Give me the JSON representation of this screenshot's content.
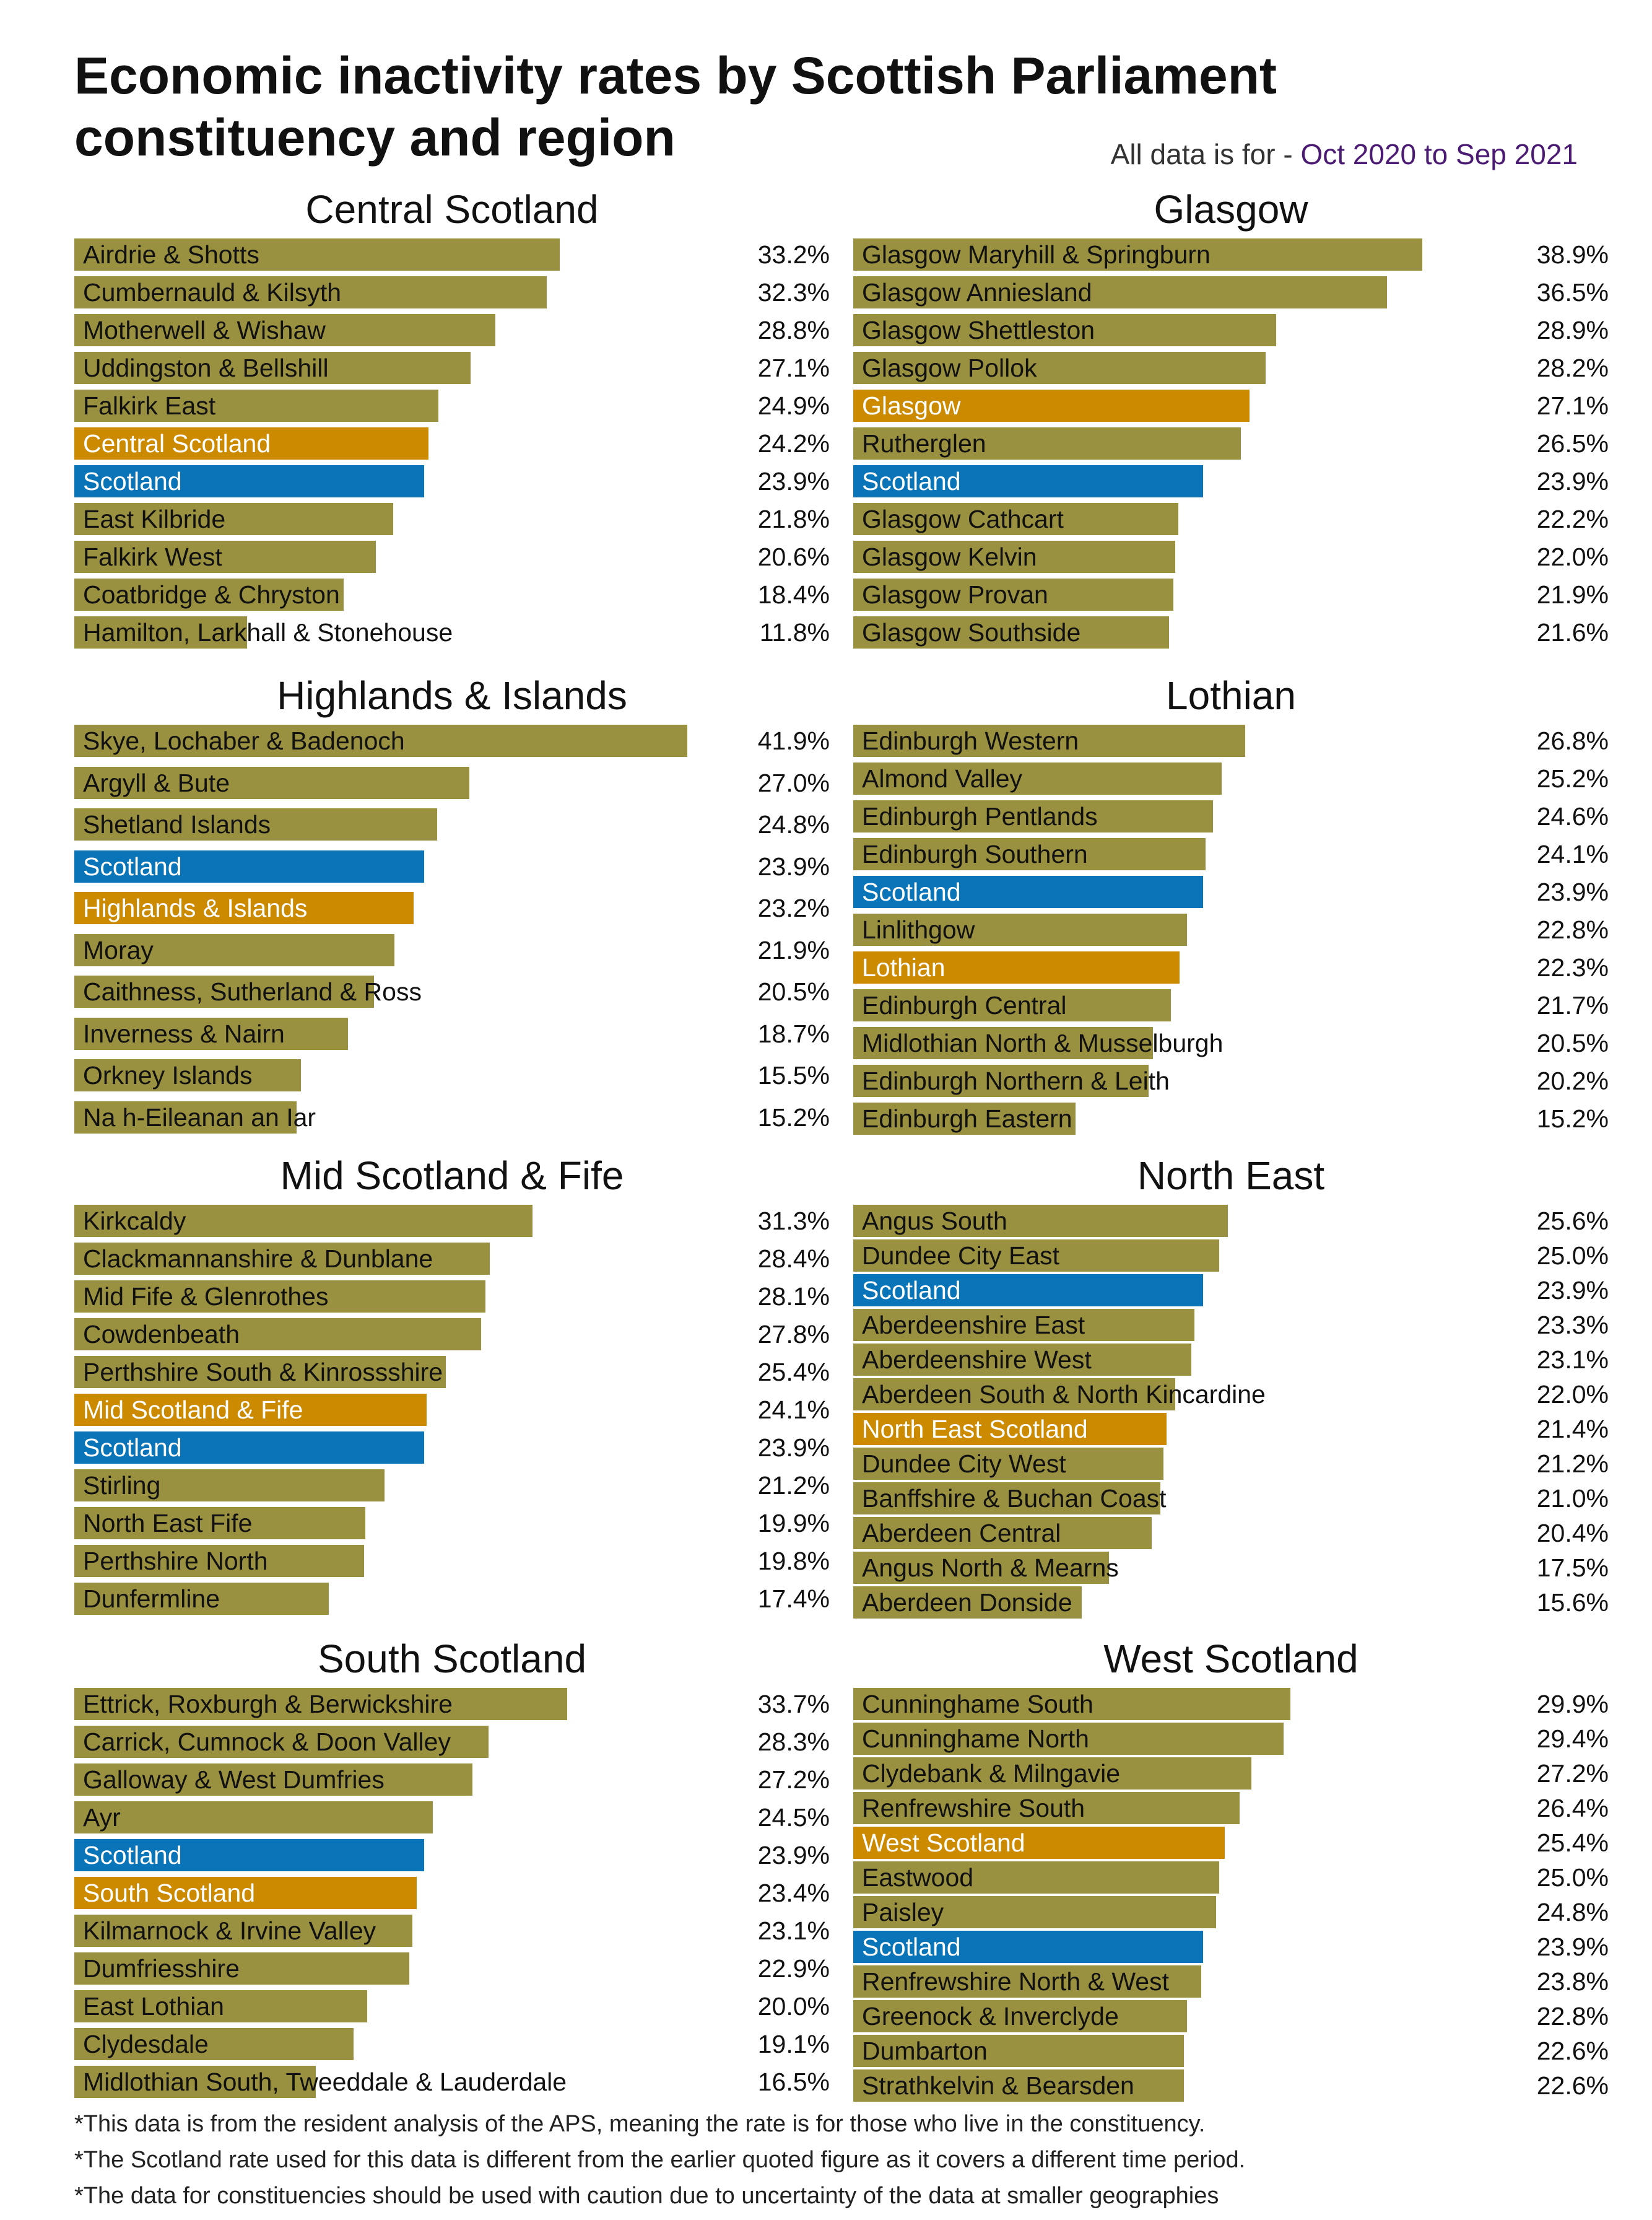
{
  "title": "Economic inactivity rates by Scottish Parliament constituency and region",
  "period_prefix": "All data is for - ",
  "period_range": "Oct 2020 to Sep 2021",
  "colors": {
    "constituency": "#9a9140",
    "region": "#cc8a00",
    "scotland": "#0a74b8",
    "period": "#4b1a73"
  },
  "notes": [
    "*This data is from the resident analysis of the APS, meaning the rate is for those who live in the constituency.",
    "*The Scotland rate used for this data is different from the earlier quoted figure as it covers a different time period.",
    "*The data for constituencies should be used with caution due to uncertainty of the data at smaller geographies"
  ],
  "chart_data": [
    {
      "type": "bar",
      "orientation": "horizontal",
      "title": "Central Scotland",
      "unit": "%",
      "categories": [
        "Airdrie & Shotts",
        "Cumbernauld & Kilsyth",
        "Motherwell & Wishaw",
        "Uddingston & Bellshill",
        "Falkirk East",
        "Central Scotland",
        "Scotland",
        "East Kilbride",
        "Falkirk West",
        "Coatbridge & Chryston",
        "Hamilton, Larkhall & Stonehouse"
      ],
      "values": [
        33.2,
        32.3,
        28.8,
        27.1,
        24.9,
        24.2,
        23.9,
        21.8,
        20.6,
        18.4,
        11.8
      ],
      "value_labels": [
        "33.2%",
        "32.3%",
        "28.8%",
        "27.1%",
        "24.9%",
        "24.2%",
        "23.9%",
        "21.8%",
        "20.6%",
        "18.4%",
        "11.8%"
      ],
      "kinds": [
        "c",
        "c",
        "c",
        "c",
        "c",
        "r",
        "s",
        "c",
        "c",
        "c",
        "c"
      ]
    },
    {
      "type": "bar",
      "orientation": "horizontal",
      "title": "Glasgow",
      "unit": "%",
      "categories": [
        "Glasgow Maryhill & Springburn",
        "Glasgow Anniesland",
        "Glasgow Shettleston",
        "Glasgow Pollok",
        "Glasgow",
        "Rutherglen",
        "Scotland",
        "Glasgow Cathcart",
        "Glasgow Kelvin",
        "Glasgow Provan",
        "Glasgow Southside"
      ],
      "values": [
        38.9,
        36.5,
        28.9,
        28.2,
        27.1,
        26.5,
        23.9,
        22.2,
        22.0,
        21.9,
        21.6
      ],
      "value_labels": [
        "38.9%",
        "36.5%",
        "28.9%",
        "28.2%",
        "27.1%",
        "26.5%",
        "23.9%",
        "22.2%",
        "22.0%",
        "21.9%",
        "21.6%"
      ],
      "kinds": [
        "c",
        "c",
        "c",
        "c",
        "r",
        "c",
        "s",
        "c",
        "c",
        "c",
        "c"
      ]
    },
    {
      "type": "bar",
      "orientation": "horizontal",
      "title": "Highlands & Islands",
      "unit": "%",
      "categories": [
        "Skye, Lochaber & Badenoch",
        "Argyll & Bute",
        "Shetland Islands",
        "Scotland",
        "Highlands & Islands",
        "Moray",
        "Caithness, Sutherland & Ross",
        "Inverness & Nairn",
        "Orkney Islands",
        "Na h-Eileanan an Iar"
      ],
      "values": [
        41.9,
        27.0,
        24.8,
        23.9,
        23.2,
        21.9,
        20.5,
        18.7,
        15.5,
        15.2
      ],
      "value_labels": [
        "41.9%",
        "27.0%",
        "24.8%",
        "23.9%",
        "23.2%",
        "21.9%",
        "20.5%",
        "18.7%",
        "15.5%",
        "15.2%"
      ],
      "kinds": [
        "c",
        "c",
        "c",
        "s",
        "r",
        "c",
        "c",
        "c",
        "c",
        "c"
      ]
    },
    {
      "type": "bar",
      "orientation": "horizontal",
      "title": "Lothian",
      "unit": "%",
      "categories": [
        "Edinburgh Western",
        "Almond Valley",
        "Edinburgh Pentlands",
        "Edinburgh Southern",
        "Scotland",
        "Linlithgow",
        "Lothian",
        "Edinburgh Central",
        "Midlothian North & Musselburgh",
        "Edinburgh Northern & Leith",
        "Edinburgh Eastern"
      ],
      "values": [
        26.8,
        25.2,
        24.6,
        24.1,
        23.9,
        22.8,
        22.3,
        21.7,
        20.5,
        20.2,
        15.2
      ],
      "value_labels": [
        "26.8%",
        "25.2%",
        "24.6%",
        "24.1%",
        "23.9%",
        "22.8%",
        "22.3%",
        "21.7%",
        "20.5%",
        "20.2%",
        "15.2%"
      ],
      "kinds": [
        "c",
        "c",
        "c",
        "c",
        "s",
        "c",
        "r",
        "c",
        "c",
        "c",
        "c"
      ]
    },
    {
      "type": "bar",
      "orientation": "horizontal",
      "title": "Mid Scotland & Fife",
      "unit": "%",
      "categories": [
        "Kirkcaldy",
        "Clackmannanshire & Dunblane",
        "Mid Fife & Glenrothes",
        "Cowdenbeath",
        "Perthshire South & Kinrossshire",
        "Mid Scotland & Fife",
        "Scotland",
        "Stirling",
        "North East Fife",
        "Perthshire North",
        "Dunfermline"
      ],
      "values": [
        31.3,
        28.4,
        28.1,
        27.8,
        25.4,
        24.1,
        23.9,
        21.2,
        19.9,
        19.8,
        17.4
      ],
      "value_labels": [
        "31.3%",
        "28.4%",
        "28.1%",
        "27.8%",
        "25.4%",
        "24.1%",
        "23.9%",
        "21.2%",
        "19.9%",
        "19.8%",
        "17.4%"
      ],
      "kinds": [
        "c",
        "c",
        "c",
        "c",
        "c",
        "r",
        "s",
        "c",
        "c",
        "c",
        "c"
      ]
    },
    {
      "type": "bar",
      "orientation": "horizontal",
      "title": "North East",
      "unit": "%",
      "categories": [
        "Angus South",
        "Dundee City East",
        "Scotland",
        "Aberdeenshire East",
        "Aberdeenshire West",
        "Aberdeen South & North Kincardine",
        "North East Scotland",
        "Dundee City West",
        "Banffshire & Buchan Coast",
        "Aberdeen Central",
        "Angus North & Mearns",
        "Aberdeen Donside"
      ],
      "values": [
        25.6,
        25.0,
        23.9,
        23.3,
        23.1,
        22.0,
        21.4,
        21.2,
        21.0,
        20.4,
        17.5,
        15.6
      ],
      "value_labels": [
        "25.6%",
        "25.0%",
        "23.9%",
        "23.3%",
        "23.1%",
        "22.0%",
        "21.4%",
        "21.2%",
        "21.0%",
        "20.4%",
        "17.5%",
        "15.6%"
      ],
      "kinds": [
        "c",
        "c",
        "s",
        "c",
        "c",
        "c",
        "r",
        "c",
        "c",
        "c",
        "c",
        "c"
      ]
    },
    {
      "type": "bar",
      "orientation": "horizontal",
      "title": "South Scotland",
      "unit": "%",
      "categories": [
        "Ettrick, Roxburgh & Berwickshire",
        "Carrick, Cumnock & Doon Valley",
        "Galloway & West Dumfries",
        "Ayr",
        "Scotland",
        "South Scotland",
        "Kilmarnock & Irvine Valley",
        "Dumfriesshire",
        "East Lothian",
        "Clydesdale",
        "Midlothian South, Tweeddale & Lauderdale"
      ],
      "values": [
        33.7,
        28.3,
        27.2,
        24.5,
        23.9,
        23.4,
        23.1,
        22.9,
        20.0,
        19.1,
        16.5
      ],
      "value_labels": [
        "33.7%",
        "28.3%",
        "27.2%",
        "24.5%",
        "23.9%",
        "23.4%",
        "23.1%",
        "22.9%",
        "20.0%",
        "19.1%",
        "16.5%"
      ],
      "kinds": [
        "c",
        "c",
        "c",
        "c",
        "s",
        "r",
        "c",
        "c",
        "c",
        "c",
        "c"
      ]
    },
    {
      "type": "bar",
      "orientation": "horizontal",
      "title": "West Scotland",
      "unit": "%",
      "categories": [
        "Cunninghame South",
        "Cunninghame North",
        "Clydebank & Milngavie",
        "Renfrewshire South",
        "West Scotland",
        "Eastwood",
        "Paisley",
        "Scotland",
        "Renfrewshire North & West",
        "Greenock & Inverclyde",
        "Dumbarton",
        "Strathkelvin & Bearsden"
      ],
      "values": [
        29.9,
        29.4,
        27.2,
        26.4,
        25.4,
        25.0,
        24.8,
        23.9,
        23.8,
        22.8,
        22.6,
        22.6
      ],
      "value_labels": [
        "29.9%",
        "29.4%",
        "27.2%",
        "26.4%",
        "25.4%",
        "25.0%",
        "24.8%",
        "23.9%",
        "23.8%",
        "22.8%",
        "22.6%",
        "22.6%"
      ],
      "kinds": [
        "c",
        "c",
        "c",
        "c",
        "r",
        "c",
        "c",
        "s",
        "c",
        "c",
        "c",
        "c"
      ]
    }
  ]
}
